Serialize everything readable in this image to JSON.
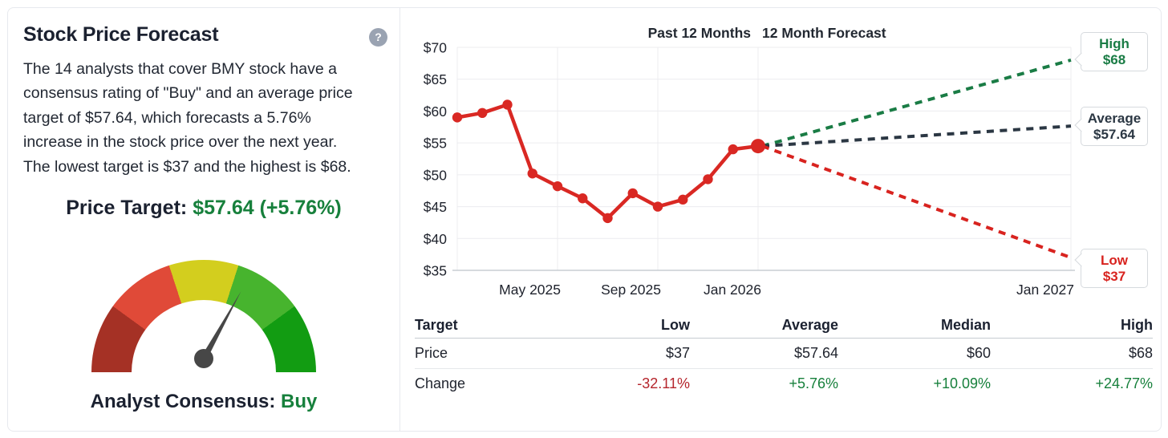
{
  "colors": {
    "green": "#17803c",
    "red_negative": "#b5252c",
    "dark_navy": "#1b2130",
    "gauge1": "#a53125",
    "gauge2": "#e04a38",
    "gauge3": "#d3ce1e",
    "gauge4": "#47b42e",
    "gauge5": "#129c12",
    "needle": "#474747"
  },
  "left_panel": {
    "title": "Stock Price Forecast",
    "help_icon": "?",
    "description_lines": [
      "The 14 analysts that cover BMY stock have a",
      "consensus rating of \"Buy\" and an average price",
      "target of $57.64, which forecasts a 5.76%",
      "increase in the stock price over the next year.",
      "The lowest target is $37 and the highest is $68."
    ],
    "price_target_label": "Price Target:",
    "price_target_value": "$57.64 (+5.76%)",
    "consensus_label": "Analyst Consensus:",
    "consensus_value": "Buy"
  },
  "gauge": {
    "needle_angle_deg": 29,
    "segment_count": 5
  },
  "chart_data": {
    "type": "line",
    "title_past": "Past 12 Months",
    "title_forecast": "12 Month Forecast",
    "ylim": [
      35,
      70
    ],
    "line_color": "#d92823",
    "yticks": [
      {
        "label": "$70",
        "value": 70
      },
      {
        "label": "$65",
        "value": 65
      },
      {
        "label": "$60",
        "value": 60
      },
      {
        "label": "$55",
        "value": 55
      },
      {
        "label": "$50",
        "value": 50
      },
      {
        "label": "$45",
        "value": 45
      },
      {
        "label": "$40",
        "value": 40
      },
      {
        "label": "$35",
        "value": 35
      }
    ],
    "x_labels": [
      {
        "label": "May 2025",
        "month": 4
      },
      {
        "label": "Sep 2025",
        "month": 8
      },
      {
        "label": "Jan 2026",
        "month": 12
      },
      {
        "label": "Jan 2027",
        "month": 24
      }
    ],
    "xgrid_months": [
      0,
      4,
      8,
      12,
      24
    ],
    "past_values": [
      59,
      59.7,
      61,
      50.2,
      48.2,
      46.3,
      43.2,
      47.1,
      45,
      46.1,
      49.3,
      54,
      54.5
    ],
    "current_price": 54.5,
    "forecast": [
      {
        "label": "High",
        "display": "$68",
        "value": 68,
        "color": "#1a7c45"
      },
      {
        "label": "Average",
        "display": "$57.64",
        "value": 57.64,
        "color": "#2b3743"
      },
      {
        "label": "Low",
        "display": "$37",
        "value": 37,
        "color": "#d8231f"
      }
    ]
  },
  "table": {
    "headers": [
      "Target",
      "Low",
      "Average",
      "Median",
      "High"
    ],
    "price_row": {
      "label": "Price",
      "values": [
        "$37",
        "$57.64",
        "$60",
        "$68"
      ]
    },
    "change_row": {
      "label": "Change",
      "values": [
        "-32.11%",
        "+5.76%",
        "+10.09%",
        "+24.77%"
      ]
    }
  }
}
